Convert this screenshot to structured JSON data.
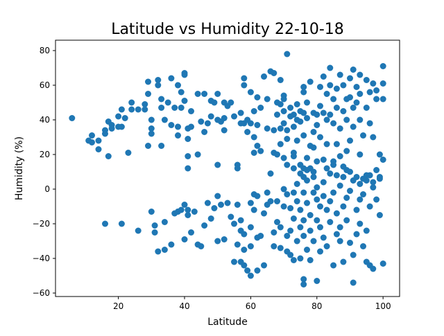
{
  "colors": {
    "marker": "#1f77b4",
    "axes": "#000000",
    "background": "#ffffff"
  },
  "chart_data": {
    "type": "scatter",
    "title": "Latitude vs Humidity 22-10-18",
    "xlabel": "Latitude",
    "ylabel": "Humidity (%)",
    "xlim": [
      1,
      105
    ],
    "ylim": [
      -62,
      86
    ],
    "xticks": [
      20,
      40,
      60,
      80,
      100
    ],
    "yticks": [
      -60,
      -40,
      -20,
      0,
      20,
      40,
      60,
      80
    ],
    "grid": false,
    "legend": "none",
    "points": [
      [
        6,
        41
      ],
      [
        11,
        28
      ],
      [
        12,
        31
      ],
      [
        12,
        27
      ],
      [
        14,
        28
      ],
      [
        14,
        23
      ],
      [
        16,
        34
      ],
      [
        16,
        32
      ],
      [
        17,
        39
      ],
      [
        17,
        19
      ],
      [
        18,
        37
      ],
      [
        18,
        35
      ],
      [
        20,
        42
      ],
      [
        20,
        36
      ],
      [
        21,
        46
      ],
      [
        21,
        36
      ],
      [
        22,
        41
      ],
      [
        23,
        21
      ],
      [
        24,
        46
      ],
      [
        24,
        50
      ],
      [
        26,
        46
      ],
      [
        28,
        46
      ],
      [
        28,
        49
      ],
      [
        29,
        25
      ],
      [
        29,
        55
      ],
      [
        29,
        62
      ],
      [
        30,
        40
      ],
      [
        30,
        35
      ],
      [
        30,
        32
      ],
      [
        32,
        63
      ],
      [
        32,
        60
      ],
      [
        33,
        52
      ],
      [
        33,
        47
      ],
      [
        33,
        25
      ],
      [
        34,
        40
      ],
      [
        35,
        50
      ],
      [
        36,
        64
      ],
      [
        36,
        37
      ],
      [
        37,
        47
      ],
      [
        38,
        36
      ],
      [
        38,
        31
      ],
      [
        38,
        60
      ],
      [
        39,
        56
      ],
      [
        39,
        47
      ],
      [
        40,
        67
      ],
      [
        40,
        66
      ],
      [
        40,
        51
      ],
      [
        41,
        35
      ],
      [
        41,
        29
      ],
      [
        41,
        19
      ],
      [
        41,
        12
      ],
      [
        42,
        36
      ],
      [
        42,
        45
      ],
      [
        44,
        20
      ],
      [
        44,
        55
      ],
      [
        45,
        39
      ],
      [
        46,
        55
      ],
      [
        46,
        33
      ],
      [
        47,
        38
      ],
      [
        48,
        42
      ],
      [
        48,
        51
      ],
      [
        49,
        50
      ],
      [
        50,
        55
      ],
      [
        50,
        40
      ],
      [
        50,
        14
      ],
      [
        51,
        39
      ],
      [
        52,
        50
      ],
      [
        52,
        41
      ],
      [
        52,
        34
      ],
      [
        53,
        48
      ],
      [
        54,
        50
      ],
      [
        55,
        42
      ],
      [
        56,
        14
      ],
      [
        56,
        12
      ],
      [
        57,
        44
      ],
      [
        57,
        38
      ],
      [
        58,
        64
      ],
      [
        58,
        60
      ],
      [
        58,
        38
      ],
      [
        59,
        40
      ],
      [
        59,
        33
      ],
      [
        60,
        38
      ],
      [
        60,
        56
      ],
      [
        61,
        45
      ],
      [
        61,
        30
      ],
      [
        61,
        21
      ],
      [
        62,
        53
      ],
      [
        62,
        37
      ],
      [
        62,
        25
      ],
      [
        63,
        22
      ],
      [
        63,
        47
      ],
      [
        64,
        65
      ],
      [
        65,
        52
      ],
      [
        65,
        35
      ],
      [
        66,
        68
      ],
      [
        66,
        9
      ],
      [
        67,
        67
      ],
      [
        67,
        34
      ],
      [
        67,
        21
      ],
      [
        68,
        20
      ],
      [
        68,
        50
      ],
      [
        68,
        43
      ],
      [
        69,
        49
      ],
      [
        69,
        35
      ],
      [
        69,
        63
      ],
      [
        69,
        26
      ],
      [
        70,
        38
      ],
      [
        70,
        18
      ],
      [
        70,
        45
      ],
      [
        70,
        54
      ],
      [
        70,
        52
      ],
      [
        71,
        78
      ],
      [
        71,
        34
      ],
      [
        71,
        29
      ],
      [
        71,
        14
      ],
      [
        72,
        42
      ],
      [
        72,
        47
      ],
      [
        73,
        36
      ],
      [
        73,
        21
      ],
      [
        73,
        19
      ],
      [
        73,
        43
      ],
      [
        74,
        40
      ],
      [
        74,
        28
      ],
      [
        74,
        49
      ],
      [
        75,
        45
      ],
      [
        75,
        39
      ],
      [
        75,
        14
      ],
      [
        75,
        9
      ],
      [
        76,
        59
      ],
      [
        76,
        56
      ],
      [
        76,
        44
      ],
      [
        76,
        31
      ],
      [
        76,
        12
      ],
      [
        76,
        7
      ],
      [
        77,
        50
      ],
      [
        77,
        41
      ],
      [
        77,
        18
      ],
      [
        77,
        5
      ],
      [
        78,
        25
      ],
      [
        78,
        12
      ],
      [
        78,
        62
      ],
      [
        79,
        44
      ],
      [
        79,
        33
      ],
      [
        79,
        24
      ],
      [
        79,
        10
      ],
      [
        80,
        43
      ],
      [
        80,
        37
      ],
      [
        80,
        16
      ],
      [
        81,
        59
      ],
      [
        81,
        48
      ],
      [
        81,
        30
      ],
      [
        82,
        65
      ],
      [
        82,
        44
      ],
      [
        82,
        17
      ],
      [
        83,
        55
      ],
      [
        83,
        40
      ],
      [
        83,
        26
      ],
      [
        83,
        12
      ],
      [
        84,
        70
      ],
      [
        84,
        60
      ],
      [
        84,
        43
      ],
      [
        85,
        52
      ],
      [
        85,
        38
      ],
      [
        85,
        16
      ],
      [
        86,
        58
      ],
      [
        86,
        47
      ],
      [
        86,
        26
      ],
      [
        86,
        8
      ],
      [
        87,
        66
      ],
      [
        87,
        35
      ],
      [
        87,
        19
      ],
      [
        88,
        60
      ],
      [
        88,
        45
      ],
      [
        88,
        13
      ],
      [
        89,
        52
      ],
      [
        89,
        40
      ],
      [
        89,
        22
      ],
      [
        90,
        64
      ],
      [
        90,
        53
      ],
      [
        90,
        28
      ],
      [
        90,
        10
      ],
      [
        91,
        69
      ],
      [
        91,
        47
      ],
      [
        91,
        36
      ],
      [
        92,
        59
      ],
      [
        92,
        50
      ],
      [
        92,
        7
      ],
      [
        93,
        66
      ],
      [
        93,
        55
      ],
      [
        93,
        40
      ],
      [
        93,
        20
      ],
      [
        94,
        31
      ],
      [
        94,
        6
      ],
      [
        95,
        63
      ],
      [
        95,
        47
      ],
      [
        95,
        5
      ],
      [
        96,
        56
      ],
      [
        96,
        38
      ],
      [
        96,
        8
      ],
      [
        97,
        61
      ],
      [
        97,
        30
      ],
      [
        97,
        4
      ],
      [
        98,
        57
      ],
      [
        98,
        52
      ],
      [
        98,
        11
      ],
      [
        99,
        20
      ],
      [
        99,
        7
      ],
      [
        100,
        71
      ],
      [
        100,
        61
      ],
      [
        100,
        52
      ],
      [
        100,
        17
      ],
      [
        16,
        -20
      ],
      [
        21,
        -20
      ],
      [
        26,
        -24
      ],
      [
        30,
        -13
      ],
      [
        31,
        -21
      ],
      [
        31,
        -25
      ],
      [
        32,
        -36
      ],
      [
        34,
        -19
      ],
      [
        34,
        -35
      ],
      [
        36,
        -32
      ],
      [
        37,
        -14
      ],
      [
        38,
        -13
      ],
      [
        39,
        -12
      ],
      [
        40,
        -9
      ],
      [
        40,
        -29
      ],
      [
        41,
        -12
      ],
      [
        41,
        -15
      ],
      [
        42,
        -25
      ],
      [
        43,
        -13
      ],
      [
        44,
        -32
      ],
      [
        45,
        -33
      ],
      [
        46,
        -21
      ],
      [
        47,
        -8
      ],
      [
        48,
        -17
      ],
      [
        49,
        -11
      ],
      [
        50,
        -4
      ],
      [
        50,
        -30
      ],
      [
        51,
        -9
      ],
      [
        52,
        -29
      ],
      [
        53,
        -8
      ],
      [
        54,
        -16
      ],
      [
        55,
        -42
      ],
      [
        55,
        -20
      ],
      [
        56,
        -9
      ],
      [
        56,
        -32
      ],
      [
        57,
        -18
      ],
      [
        57,
        -24
      ],
      [
        57,
        -42
      ],
      [
        58,
        -26
      ],
      [
        58,
        -35
      ],
      [
        58,
        -44
      ],
      [
        59,
        -47
      ],
      [
        60,
        -8
      ],
      [
        60,
        -22
      ],
      [
        60,
        -33
      ],
      [
        60,
        -50
      ],
      [
        61,
        -3
      ],
      [
        61,
        -12
      ],
      [
        62,
        -4
      ],
      [
        62,
        -28
      ],
      [
        62,
        -47
      ],
      [
        63,
        -27
      ],
      [
        64,
        -14
      ],
      [
        64,
        -44
      ],
      [
        65,
        -2
      ],
      [
        65,
        -9
      ],
      [
        66,
        -7
      ],
      [
        67,
        -25
      ],
      [
        67,
        -33
      ],
      [
        68,
        -7
      ],
      [
        68,
        -19
      ],
      [
        69,
        -22
      ],
      [
        69,
        -34
      ],
      [
        70,
        0
      ],
      [
        70,
        -10
      ],
      [
        71,
        -3
      ],
      [
        71,
        -27
      ],
      [
        71,
        -36
      ],
      [
        72,
        -11
      ],
      [
        72,
        -24
      ],
      [
        72,
        -38
      ],
      [
        73,
        -2
      ],
      [
        73,
        -17
      ],
      [
        73,
        -41
      ],
      [
        74,
        -7
      ],
      [
        74,
        -30
      ],
      [
        75,
        -12
      ],
      [
        75,
        -22
      ],
      [
        75,
        -40
      ],
      [
        76,
        -2
      ],
      [
        76,
        -18
      ],
      [
        76,
        -27
      ],
      [
        76,
        -52
      ],
      [
        76,
        -55
      ],
      [
        77,
        -8
      ],
      [
        77,
        -35
      ],
      [
        78,
        -15
      ],
      [
        78,
        -24
      ],
      [
        78,
        -41
      ],
      [
        79,
        -2
      ],
      [
        79,
        -30
      ],
      [
        80,
        -6
      ],
      [
        80,
        -18
      ],
      [
        80,
        -53
      ],
      [
        81,
        -10
      ],
      [
        81,
        -22
      ],
      [
        81,
        -36
      ],
      [
        82,
        -4
      ],
      [
        82,
        -28
      ],
      [
        83,
        -12
      ],
      [
        83,
        -33
      ],
      [
        84,
        -7
      ],
      [
        84,
        -19
      ],
      [
        85,
        -2
      ],
      [
        85,
        -44
      ],
      [
        86,
        -26
      ],
      [
        86,
        -14
      ],
      [
        87,
        -30
      ],
      [
        87,
        -22
      ],
      [
        88,
        -10
      ],
      [
        88,
        -42
      ],
      [
        89,
        -5
      ],
      [
        89,
        -18
      ],
      [
        90,
        -1
      ],
      [
        90,
        -31
      ],
      [
        91,
        -54
      ],
      [
        91,
        -38
      ],
      [
        92,
        -12
      ],
      [
        92,
        -26
      ],
      [
        93,
        -6
      ],
      [
        93,
        -20
      ],
      [
        94,
        -3
      ],
      [
        94,
        -33
      ],
      [
        95,
        -24
      ],
      [
        95,
        -42
      ],
      [
        96,
        -10
      ],
      [
        96,
        -44
      ],
      [
        97,
        -46
      ],
      [
        98,
        -6
      ],
      [
        99,
        -15
      ],
      [
        100,
        -43
      ],
      [
        73,
        12
      ],
      [
        74,
        3
      ],
      [
        77,
        11
      ],
      [
        79,
        7
      ],
      [
        80,
        1
      ],
      [
        82,
        4
      ],
      [
        84,
        9
      ],
      [
        85,
        14
      ],
      [
        87,
        2
      ],
      [
        88,
        7
      ],
      [
        89,
        11
      ],
      [
        91,
        5
      ],
      [
        93,
        3
      ],
      [
        95,
        8
      ],
      [
        97,
        1
      ],
      [
        99,
        6
      ]
    ]
  }
}
